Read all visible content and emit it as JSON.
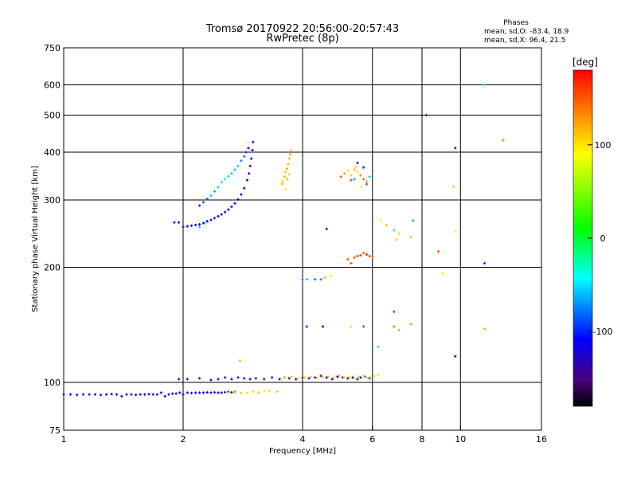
{
  "chart_data": {
    "type": "scatter",
    "title": "Tromsø 20170922 20:56:00-20:57:43",
    "subtitle": "RwPretec (8p)",
    "xlabel": "Frequency [MHz]",
    "ylabel": "Stationary phase Virtual Height [km]",
    "x_scale": "log2",
    "y_scale": "log",
    "xlim": [
      1,
      16
    ],
    "ylim": [
      75,
      750
    ],
    "x_ticks": [
      1,
      2,
      4,
      6,
      8,
      10,
      16
    ],
    "y_ticks": [
      75,
      100,
      200,
      300,
      400,
      500,
      600,
      750
    ],
    "grid": true,
    "phase_info": {
      "heading": "Phases",
      "line_o": "mean, sd,O: -83.4, 18.9",
      "line_x": "mean, sd,X:  96.4, 21.5"
    },
    "colorbar": {
      "title": "[deg]",
      "range": [
        -180,
        180
      ],
      "ticks": [
        100,
        0,
        -100
      ],
      "colors": [
        "#000000",
        "#4b0082",
        "#0000ff",
        "#00ffff",
        "#00ff00",
        "#ffff00",
        "#ff0000"
      ]
    },
    "series": [
      {
        "group": "E-layer trace",
        "points": [
          [
            1.0,
            93,
            -120
          ],
          [
            1.04,
            93,
            -120
          ],
          [
            1.08,
            92.8,
            -118
          ],
          [
            1.12,
            93,
            -122
          ],
          [
            1.16,
            93,
            -120
          ],
          [
            1.2,
            93,
            -119
          ],
          [
            1.24,
            92.7,
            -121
          ],
          [
            1.28,
            93,
            -120
          ],
          [
            1.32,
            93.2,
            -118
          ],
          [
            1.36,
            93,
            -120
          ],
          [
            1.4,
            92,
            -115
          ],
          [
            1.44,
            93,
            -120
          ],
          [
            1.48,
            93,
            -121
          ],
          [
            1.52,
            92.8,
            -119
          ],
          [
            1.56,
            93,
            -120
          ],
          [
            1.6,
            93,
            -118
          ],
          [
            1.64,
            93.2,
            -120
          ],
          [
            1.68,
            93,
            -122
          ],
          [
            1.72,
            93,
            -120
          ],
          [
            1.76,
            94,
            -120
          ],
          [
            1.8,
            92,
            -117
          ],
          [
            1.84,
            93,
            -120
          ],
          [
            1.88,
            93.5,
            -120
          ],
          [
            1.92,
            93.5,
            -118
          ],
          [
            1.96,
            94,
            -120
          ],
          [
            2.0,
            93,
            -121
          ],
          [
            2.05,
            94,
            -120
          ],
          [
            2.1,
            93.8,
            -119
          ],
          [
            2.15,
            94,
            -120
          ],
          [
            2.2,
            94,
            -120
          ],
          [
            2.25,
            94,
            -118
          ],
          [
            2.3,
            94.2,
            -120
          ],
          [
            2.35,
            94,
            -120
          ],
          [
            2.4,
            94.2,
            -121
          ],
          [
            2.45,
            94,
            -120
          ],
          [
            2.5,
            94,
            -122
          ],
          [
            2.55,
            94.3,
            -140
          ],
          [
            2.6,
            94.5,
            -150
          ],
          [
            2.65,
            94.2,
            -160
          ],
          [
            2.7,
            94.5,
            -145
          ]
        ]
      },
      {
        "group": "E-layer O-mode",
        "points": [
          [
            1.95,
            102,
            -115
          ],
          [
            2.05,
            102,
            -120
          ],
          [
            2.2,
            102.5,
            -105
          ],
          [
            2.35,
            101.5,
            -118
          ],
          [
            2.45,
            102,
            -120
          ],
          [
            2.55,
            103,
            -105
          ],
          [
            2.65,
            102,
            -115
          ],
          [
            2.75,
            103,
            -130
          ],
          [
            2.85,
            102.5,
            -118
          ],
          [
            2.95,
            102,
            -120
          ],
          [
            3.05,
            102.5,
            -125
          ],
          [
            3.2,
            102,
            -150
          ],
          [
            3.35,
            103,
            -140
          ],
          [
            3.5,
            102,
            -115
          ],
          [
            3.6,
            103,
            -145
          ],
          [
            3.7,
            102.5,
            -135
          ],
          [
            3.85,
            102,
            -120
          ],
          [
            4.0,
            103,
            -140
          ],
          [
            4.15,
            102.5,
            -130
          ],
          [
            4.3,
            103,
            -120
          ],
          [
            4.45,
            104,
            -150
          ],
          [
            4.6,
            103,
            -110
          ],
          [
            4.75,
            102,
            -120
          ],
          [
            4.9,
            103.5,
            -130
          ],
          [
            5.05,
            103,
            -140
          ],
          [
            5.2,
            102.5,
            -110
          ],
          [
            5.35,
            103,
            -120
          ],
          [
            5.5,
            102,
            -125
          ],
          [
            5.6,
            103,
            -118
          ],
          [
            5.75,
            103.5,
            -80
          ],
          [
            5.9,
            102.5,
            -95
          ]
        ]
      },
      {
        "group": "E-layer X-mode",
        "points": [
          [
            2.6,
            94,
            60
          ],
          [
            2.7,
            94.5,
            30
          ],
          [
            2.8,
            93.8,
            110
          ],
          [
            2.9,
            94,
            100
          ],
          [
            3.0,
            94.5,
            105
          ],
          [
            3.1,
            94,
            110
          ],
          [
            3.2,
            94.8,
            100
          ],
          [
            3.3,
            95,
            105
          ],
          [
            3.45,
            94.6,
            112
          ],
          [
            3.6,
            103,
            110
          ],
          [
            3.75,
            103.5,
            105
          ],
          [
            3.9,
            102.5,
            100
          ],
          [
            4.05,
            103,
            108
          ],
          [
            4.2,
            103.5,
            112
          ],
          [
            4.35,
            102.5,
            105
          ],
          [
            4.5,
            103,
            98
          ],
          [
            4.65,
            103.5,
            108
          ],
          [
            4.8,
            103,
            110
          ],
          [
            4.95,
            104,
            112
          ],
          [
            5.1,
            103,
            105
          ],
          [
            5.25,
            103.5,
            100
          ],
          [
            5.4,
            102.5,
            108
          ],
          [
            5.55,
            103.5,
            112
          ],
          [
            5.7,
            104,
            103
          ],
          [
            5.85,
            103,
            108
          ],
          [
            6.05,
            104,
            105
          ],
          [
            6.2,
            104.5,
            100
          ],
          [
            2.78,
            114,
            120
          ]
        ]
      },
      {
        "group": "F-layer lower trace",
        "points": [
          [
            1.9,
            262,
            -105
          ],
          [
            1.95,
            262,
            -105
          ],
          [
            2.0,
            255,
            -110
          ],
          [
            2.05,
            256,
            -110
          ],
          [
            2.1,
            257,
            -115
          ],
          [
            2.15,
            258,
            -112
          ],
          [
            2.2,
            259,
            -110
          ],
          [
            2.25,
            261,
            -112
          ],
          [
            2.3,
            264,
            -108
          ],
          [
            2.35,
            266,
            -115
          ],
          [
            2.4,
            269,
            -110
          ],
          [
            2.45,
            272,
            -112
          ],
          [
            2.5,
            275,
            -108
          ],
          [
            2.55,
            279,
            -112
          ],
          [
            2.6,
            283,
            -110
          ],
          [
            2.65,
            288,
            -115
          ],
          [
            2.7,
            294,
            -110
          ],
          [
            2.75,
            301,
            -112
          ],
          [
            2.8,
            310,
            -115
          ],
          [
            2.85,
            322,
            -110
          ],
          [
            2.9,
            338,
            -118
          ],
          [
            2.93,
            352,
            -112
          ],
          [
            2.95,
            368,
            -115
          ],
          [
            2.97,
            385,
            -112
          ],
          [
            2.99,
            405,
            -120
          ],
          [
            3.0,
            425,
            -115
          ],
          [
            2.28,
            262,
            -40
          ],
          [
            2.2,
            255,
            -60
          ]
        ]
      },
      {
        "group": "F-layer upper trace",
        "points": [
          [
            2.2,
            290,
            -100
          ],
          [
            2.25,
            296,
            -90
          ],
          [
            2.3,
            302,
            -85
          ],
          [
            2.35,
            308,
            -60
          ],
          [
            2.4,
            316,
            -70
          ],
          [
            2.45,
            324,
            -60
          ],
          [
            2.5,
            334,
            -55
          ],
          [
            2.55,
            340,
            -50
          ],
          [
            2.6,
            346,
            -55
          ],
          [
            2.65,
            352,
            -60
          ],
          [
            2.7,
            360,
            -65
          ],
          [
            2.75,
            368,
            -60
          ],
          [
            2.8,
            380,
            -75
          ],
          [
            2.85,
            390,
            -80
          ],
          [
            2.88,
            400,
            -100
          ],
          [
            2.92,
            410,
            -110
          ]
        ]
      },
      {
        "group": "F-layer X-mode",
        "points": [
          [
            3.55,
            330,
            115
          ],
          [
            3.6,
            345,
            120
          ],
          [
            3.62,
            355,
            110
          ],
          [
            3.65,
            362,
            125
          ],
          [
            3.68,
            372,
            115
          ],
          [
            3.7,
            385,
            120
          ],
          [
            3.72,
            395,
            125
          ],
          [
            3.74,
            405,
            110
          ],
          [
            3.62,
            320,
            100
          ],
          [
            3.66,
            340,
            115
          ],
          [
            3.56,
            335,
            108
          ],
          [
            3.7,
            350,
            112
          ]
        ]
      },
      {
        "group": "Scattered echoes 5-6 MHz",
        "points": [
          [
            5.0,
            345,
            150
          ],
          [
            5.1,
            352,
            120
          ],
          [
            5.2,
            358,
            100
          ],
          [
            5.3,
            348,
            110
          ],
          [
            5.4,
            360,
            115
          ],
          [
            5.5,
            355,
            100
          ],
          [
            5.6,
            348,
            130
          ],
          [
            5.7,
            340,
            140
          ],
          [
            5.8,
            335,
            120
          ],
          [
            5.9,
            345,
            -60
          ],
          [
            5.5,
            375,
            -110
          ],
          [
            5.7,
            365,
            -100
          ],
          [
            5.8,
            330,
            -80
          ],
          [
            5.3,
            338,
            160
          ],
          [
            5.45,
            365,
            110
          ],
          [
            5.6,
            325,
            95
          ],
          [
            5.4,
            340,
            -70
          ],
          [
            5.2,
            210,
            150
          ],
          [
            5.4,
            212,
            155
          ],
          [
            5.5,
            214,
            160
          ],
          [
            5.6,
            215,
            155
          ],
          [
            5.7,
            218,
            150
          ],
          [
            5.8,
            216,
            165
          ],
          [
            5.9,
            214,
            160
          ],
          [
            6.0,
            213,
            145
          ],
          [
            5.3,
            205,
            150
          ]
        ]
      },
      {
        "group": "Sporadic echoes",
        "points": [
          [
            4.0,
            186,
            -70
          ],
          [
            4.1,
            186,
            -60
          ],
          [
            4.3,
            186,
            -80
          ],
          [
            4.45,
            186,
            -75
          ],
          [
            4.55,
            188,
            120
          ],
          [
            4.7,
            190,
            80
          ],
          [
            4.1,
            140,
            -100
          ],
          [
            4.5,
            140,
            -110
          ],
          [
            5.3,
            140,
            70
          ],
          [
            5.7,
            140,
            -80
          ],
          [
            6.8,
            140,
            140
          ],
          [
            7.5,
            142,
            130
          ],
          [
            4.6,
            252,
            -140
          ],
          [
            6.3,
            265,
            90
          ],
          [
            6.5,
            258,
            110
          ],
          [
            6.8,
            250,
            -40
          ],
          [
            7.0,
            245,
            100
          ],
          [
            7.5,
            240,
            120
          ],
          [
            7.6,
            265,
            -70
          ],
          [
            8.8,
            220,
            150
          ],
          [
            9.7,
            248,
            80
          ],
          [
            9.6,
            325,
            110
          ],
          [
            9.7,
            410,
            -120
          ],
          [
            8.2,
            500,
            -120
          ],
          [
            11.5,
            600,
            -50
          ],
          [
            12.8,
            430,
            140
          ],
          [
            11.5,
            205,
            -100
          ],
          [
            9.7,
            117,
            -120
          ],
          [
            11.5,
            138,
            120
          ],
          [
            6.2,
            124,
            -20
          ],
          [
            7.0,
            137,
            125
          ],
          [
            6.8,
            153,
            170
          ],
          [
            9.0,
            193,
            90
          ],
          [
            6.9,
            236,
            110
          ]
        ]
      }
    ]
  }
}
